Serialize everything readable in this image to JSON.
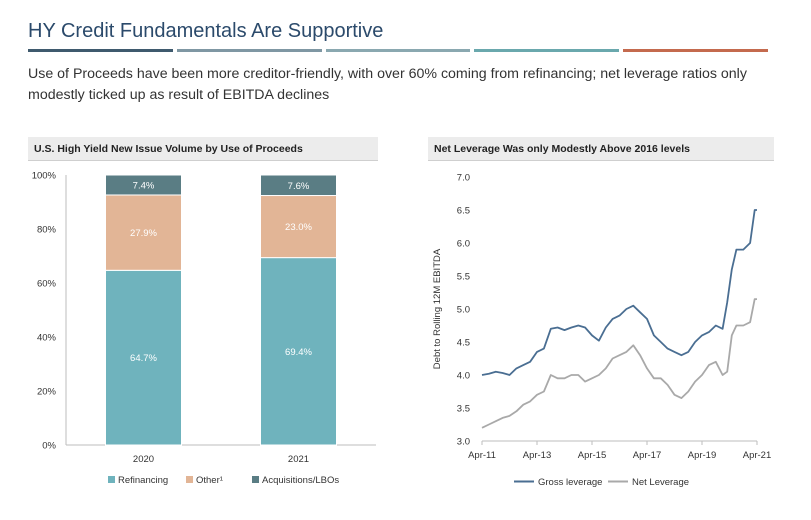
{
  "page": {
    "title": "HY Credit Fundamentals Are Supportive",
    "subtitle": "Use of Proceeds have been more creditor-friendly, with over 60% coming from refinancing; net leverage ratios only modestly ticked up as result of EBITDA declines",
    "rule_colors": [
      "#3f5a6e",
      "#7f97a3",
      "#8aa8b0",
      "#6aa8ad",
      "#c46a4e"
    ]
  },
  "chart_data": [
    {
      "type": "bar",
      "stacked": true,
      "title": "U.S. High Yield New Issue Volume by Use of Proceeds",
      "categories": [
        "2020",
        "2021"
      ],
      "series": [
        {
          "name": "Refinancing",
          "values": [
            64.7,
            69.4
          ],
          "labels": [
            "64.7%",
            "69.4%"
          ],
          "color": "#6fb3bd"
        },
        {
          "name": "Other¹",
          "values": [
            27.9,
            23.0
          ],
          "labels": [
            "27.9%",
            "23.0%"
          ],
          "color": "#e2b596"
        },
        {
          "name": "Acquisitions/LBOs",
          "values": [
            7.4,
            7.6
          ],
          "labels": [
            "7.4%",
            "7.6%"
          ],
          "color": "#5a7d84"
        }
      ],
      "ylim": [
        0,
        100
      ],
      "yticks": [
        0,
        20,
        40,
        60,
        80,
        100
      ],
      "ytick_labels": [
        "0%",
        "20%",
        "40%",
        "60%",
        "80%",
        "100%"
      ],
      "xlabel": "",
      "ylabel": "",
      "legend": "bottom",
      "grid": false
    },
    {
      "type": "line",
      "title": "Net Leverage Was only Modestly Above 2016 levels",
      "ylabel": "Debt to Rolling 12M EBITDA",
      "xlabel": "",
      "xlim": [
        "2011-04",
        "2021-04"
      ],
      "xticks": [
        "2011-04",
        "2013-04",
        "2015-04",
        "2017-04",
        "2019-04",
        "2021-04"
      ],
      "xtick_labels": [
        "Apr-11",
        "Apr-13",
        "Apr-15",
        "Apr-17",
        "Apr-19",
        "Apr-21"
      ],
      "ylim": [
        3.0,
        7.0
      ],
      "yticks": [
        3.0,
        3.5,
        4.0,
        4.5,
        5.0,
        5.5,
        6.0,
        6.5,
        7.0
      ],
      "ytick_labels": [
        "3.0",
        "3.5",
        "4.0",
        "4.5",
        "5.0",
        "5.5",
        "6.0",
        "6.5",
        "7.0"
      ],
      "legend": "bottom",
      "grid": false,
      "series": [
        {
          "name": "Gross leverage",
          "color": "#4a6e92",
          "points": [
            [
              "2011-04",
              4.0
            ],
            [
              "2011-07",
              4.02
            ],
            [
              "2011-10",
              4.05
            ],
            [
              "2012-01",
              4.03
            ],
            [
              "2012-04",
              4.0
            ],
            [
              "2012-07",
              4.1
            ],
            [
              "2012-10",
              4.15
            ],
            [
              "2013-01",
              4.2
            ],
            [
              "2013-04",
              4.35
            ],
            [
              "2013-07",
              4.4
            ],
            [
              "2013-10",
              4.7
            ],
            [
              "2014-01",
              4.72
            ],
            [
              "2014-04",
              4.68
            ],
            [
              "2014-07",
              4.72
            ],
            [
              "2014-10",
              4.75
            ],
            [
              "2015-01",
              4.72
            ],
            [
              "2015-04",
              4.6
            ],
            [
              "2015-07",
              4.52
            ],
            [
              "2015-10",
              4.72
            ],
            [
              "2016-01",
              4.85
            ],
            [
              "2016-04",
              4.9
            ],
            [
              "2016-07",
              5.0
            ],
            [
              "2016-10",
              5.05
            ],
            [
              "2017-01",
              4.95
            ],
            [
              "2017-04",
              4.85
            ],
            [
              "2017-07",
              4.6
            ],
            [
              "2017-10",
              4.5
            ],
            [
              "2018-01",
              4.4
            ],
            [
              "2018-04",
              4.35
            ],
            [
              "2018-07",
              4.3
            ],
            [
              "2018-10",
              4.35
            ],
            [
              "2019-01",
              4.5
            ],
            [
              "2019-04",
              4.6
            ],
            [
              "2019-07",
              4.65
            ],
            [
              "2019-10",
              4.75
            ],
            [
              "2020-01",
              4.7
            ],
            [
              "2020-03",
              5.1
            ],
            [
              "2020-05",
              5.6
            ],
            [
              "2020-07",
              5.9
            ],
            [
              "2020-10",
              5.9
            ],
            [
              "2021-01",
              6.0
            ],
            [
              "2021-03",
              6.5
            ],
            [
              "2021-04",
              6.5
            ]
          ]
        },
        {
          "name": "Net Leverage",
          "color": "#a9a9a9",
          "points": [
            [
              "2011-04",
              3.2
            ],
            [
              "2011-07",
              3.25
            ],
            [
              "2011-10",
              3.3
            ],
            [
              "2012-01",
              3.35
            ],
            [
              "2012-04",
              3.38
            ],
            [
              "2012-07",
              3.45
            ],
            [
              "2012-10",
              3.55
            ],
            [
              "2013-01",
              3.6
            ],
            [
              "2013-04",
              3.7
            ],
            [
              "2013-07",
              3.75
            ],
            [
              "2013-10",
              4.0
            ],
            [
              "2014-01",
              3.95
            ],
            [
              "2014-04",
              3.95
            ],
            [
              "2014-07",
              4.0
            ],
            [
              "2014-10",
              4.0
            ],
            [
              "2015-01",
              3.9
            ],
            [
              "2015-04",
              3.95
            ],
            [
              "2015-07",
              4.0
            ],
            [
              "2015-10",
              4.1
            ],
            [
              "2016-01",
              4.25
            ],
            [
              "2016-04",
              4.3
            ],
            [
              "2016-07",
              4.35
            ],
            [
              "2016-10",
              4.45
            ],
            [
              "2017-01",
              4.3
            ],
            [
              "2017-04",
              4.1
            ],
            [
              "2017-07",
              3.95
            ],
            [
              "2017-10",
              3.95
            ],
            [
              "2018-01",
              3.85
            ],
            [
              "2018-04",
              3.7
            ],
            [
              "2018-07",
              3.65
            ],
            [
              "2018-10",
              3.75
            ],
            [
              "2019-01",
              3.9
            ],
            [
              "2019-04",
              4.0
            ],
            [
              "2019-07",
              4.15
            ],
            [
              "2019-10",
              4.2
            ],
            [
              "2020-01",
              4.0
            ],
            [
              "2020-03",
              4.05
            ],
            [
              "2020-05",
              4.6
            ],
            [
              "2020-07",
              4.75
            ],
            [
              "2020-10",
              4.75
            ],
            [
              "2021-01",
              4.8
            ],
            [
              "2021-03",
              5.15
            ],
            [
              "2021-04",
              5.15
            ]
          ]
        }
      ]
    }
  ]
}
